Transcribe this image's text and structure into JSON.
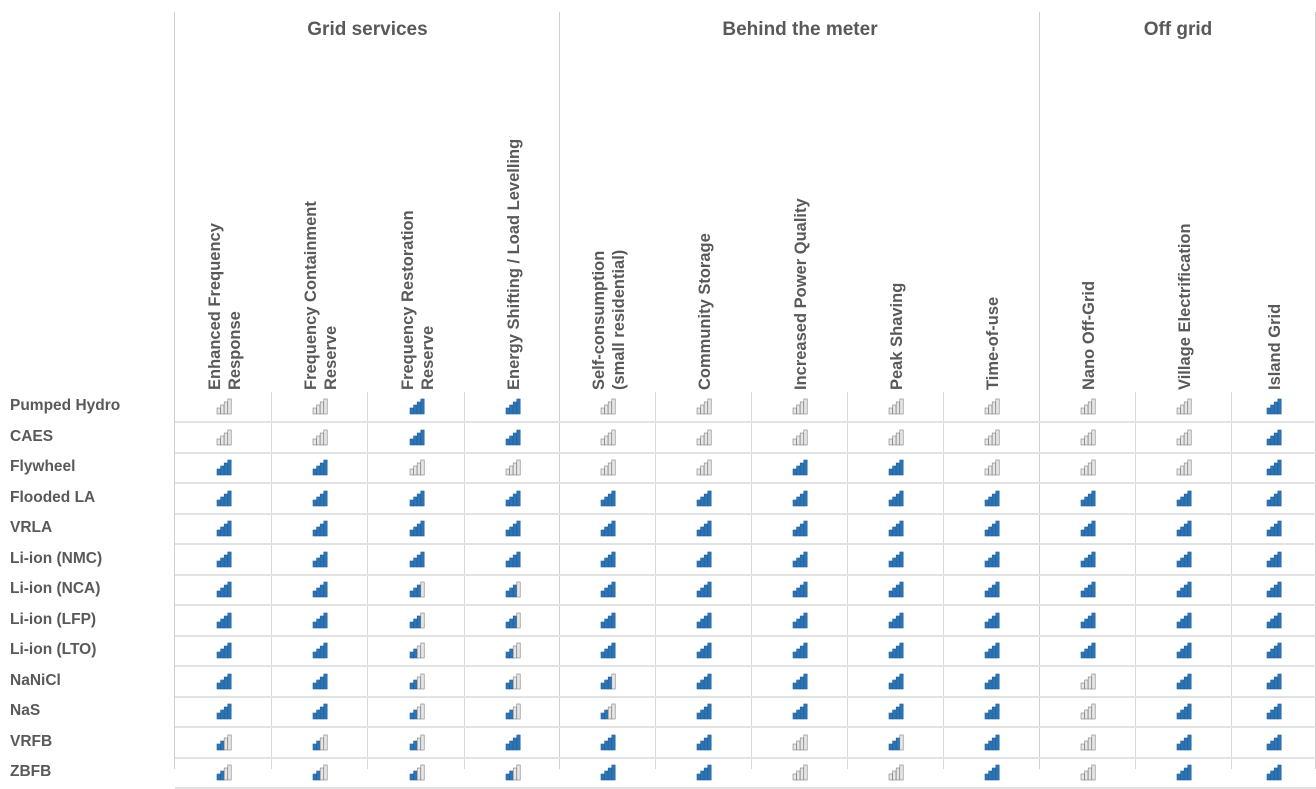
{
  "chart_data": {
    "type": "table",
    "column_groups": [
      {
        "label": "Grid services",
        "span": 4
      },
      {
        "label": "Behind the meter",
        "span": 5
      },
      {
        "label": "Off grid",
        "span": 3
      }
    ],
    "columns": [
      "Enhanced Frequency\nResponse",
      "Frequency Containment\nReserve",
      "Frequency Restoration\nReserve",
      "Energy Shifting / Load Levelling",
      "Self-consumption\n(small residential)",
      "Community Storage",
      "Increased Power Quality",
      "Peak Shaving",
      "Time-of-use",
      "Nano Off-Grid",
      "Village Electrification",
      "Island Grid"
    ],
    "rows": [
      "Pumped Hydro",
      "CAES",
      "Flywheel",
      "Flooded LA",
      "VRLA",
      "Li-ion (NMC)",
      "Li-ion (NCA)",
      "Li-ion (LFP)",
      "Li-ion (LTO)",
      "NaNiCl",
      "NaS",
      "VRFB",
      "ZBFB"
    ],
    "scale_max": 4,
    "values": [
      [
        0,
        0,
        4,
        4,
        0,
        0,
        0,
        0,
        0,
        0,
        0,
        4
      ],
      [
        0,
        0,
        4,
        4,
        0,
        0,
        0,
        0,
        0,
        0,
        0,
        4
      ],
      [
        4,
        4,
        0,
        0,
        0,
        0,
        4,
        4,
        0,
        0,
        0,
        4
      ],
      [
        4,
        4,
        4,
        4,
        4,
        4,
        4,
        4,
        4,
        4,
        4,
        4
      ],
      [
        4,
        4,
        4,
        4,
        4,
        4,
        4,
        4,
        4,
        4,
        4,
        4
      ],
      [
        4,
        4,
        4,
        4,
        4,
        4,
        4,
        4,
        4,
        4,
        4,
        4
      ],
      [
        4,
        4,
        3,
        3,
        4,
        4,
        4,
        4,
        4,
        4,
        4,
        4
      ],
      [
        4,
        4,
        3,
        3,
        4,
        4,
        4,
        4,
        4,
        4,
        4,
        4
      ],
      [
        4,
        4,
        2,
        2,
        4,
        4,
        4,
        4,
        4,
        4,
        4,
        4
      ],
      [
        4,
        4,
        2,
        2,
        3,
        4,
        4,
        4,
        4,
        0,
        4,
        4
      ],
      [
        4,
        4,
        2,
        2,
        2,
        4,
        4,
        4,
        4,
        0,
        4,
        4
      ],
      [
        2,
        2,
        2,
        4,
        4,
        4,
        0,
        3,
        4,
        0,
        4,
        4
      ],
      [
        2,
        2,
        2,
        2,
        4,
        4,
        0,
        0,
        4,
        0,
        4,
        4
      ]
    ],
    "colors": {
      "filled": "#2e75b6",
      "empty": "#b4b4b4",
      "outline": "#7f7f7f"
    }
  }
}
